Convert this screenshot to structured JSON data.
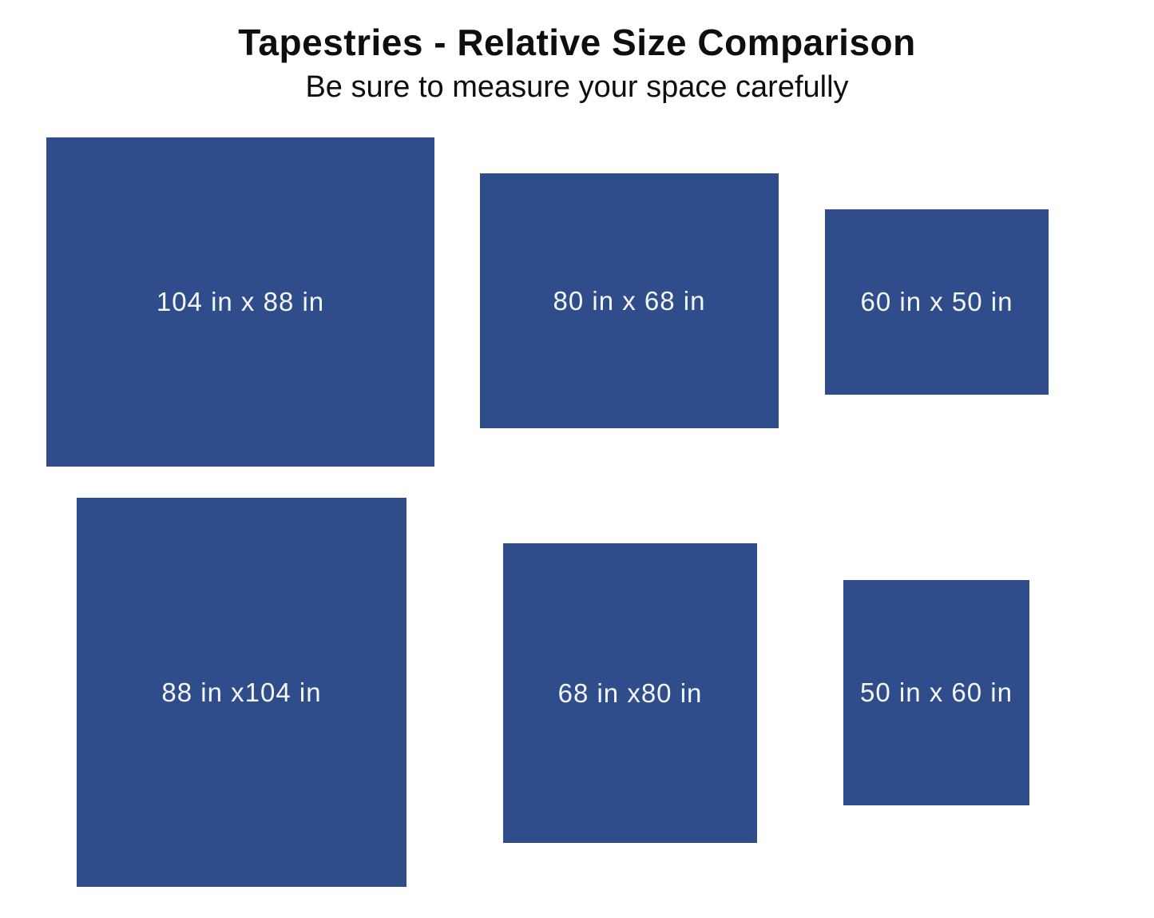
{
  "header": {
    "title": "Tapestries - Relative Size Comparison",
    "subtitle": "Be sure to measure your space carefully"
  },
  "colors": {
    "tapestry_fill": "#2F4D8A",
    "label_text": "#F5F6FA",
    "title_text": "#0E0E10",
    "background": "#FFFFFF"
  },
  "tapestries": [
    {
      "label": "104 in x 88 in",
      "width_in": 104,
      "height_in": 88
    },
    {
      "label": "80 in x 68 in",
      "width_in": 80,
      "height_in": 68
    },
    {
      "label": "60 in x 50 in",
      "width_in": 60,
      "height_in": 50
    },
    {
      "label": "88 in x104 in",
      "width_in": 88,
      "height_in": 104
    },
    {
      "label": "68 in x80 in",
      "width_in": 68,
      "height_in": 80
    },
    {
      "label": "50 in x 60 in",
      "width_in": 50,
      "height_in": 60
    }
  ]
}
